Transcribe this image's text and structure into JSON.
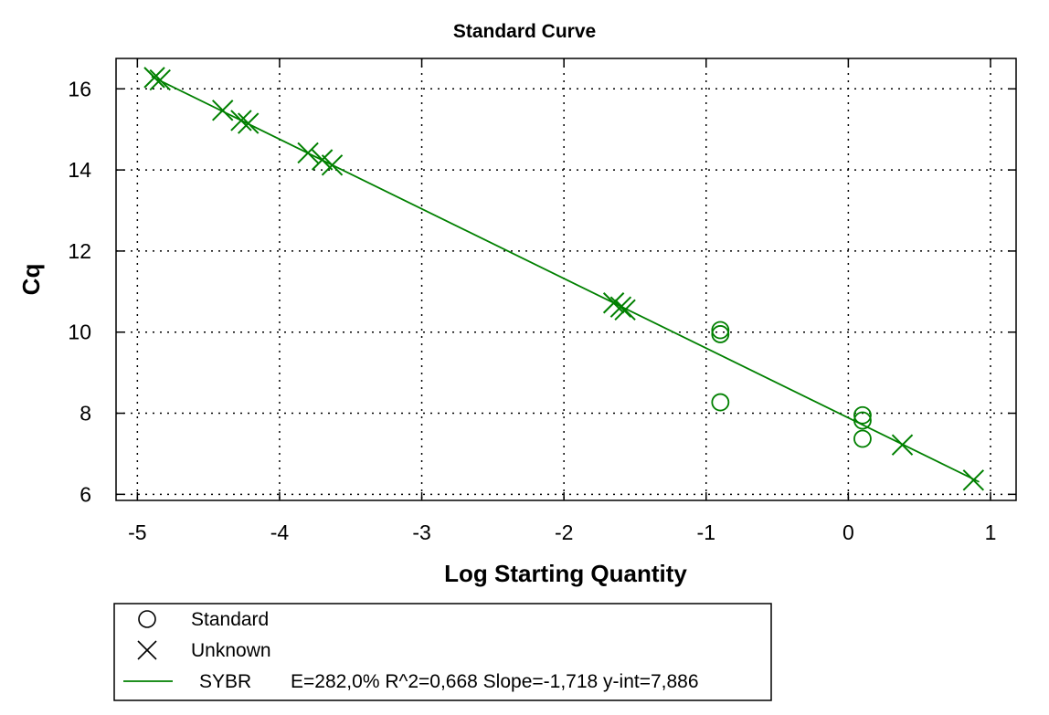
{
  "chart_data": {
    "type": "scatter",
    "title": "Standard Curve",
    "xlabel": "Log Starting Quantity",
    "ylabel": "Cq",
    "xlim": [
      -5.15,
      1.18
    ],
    "ylim": [
      5.85,
      16.75
    ],
    "xticks": [
      -5,
      -4,
      -3,
      -2,
      -1,
      0,
      1
    ],
    "yticks": [
      6,
      8,
      10,
      12,
      14,
      16
    ],
    "grid": true,
    "color": "#008000",
    "series": [
      {
        "name": "Standard",
        "marker": "circle",
        "points": [
          {
            "x": -0.9,
            "y": 10.05
          },
          {
            "x": -0.9,
            "y": 9.95
          },
          {
            "x": -0.9,
            "y": 8.27
          },
          {
            "x": 0.1,
            "y": 7.95
          },
          {
            "x": 0.1,
            "y": 7.82
          },
          {
            "x": 0.1,
            "y": 7.37
          }
        ]
      },
      {
        "name": "Unknown",
        "marker": "x",
        "points": [
          {
            "x": -4.88,
            "y": 16.28
          },
          {
            "x": -4.84,
            "y": 16.22
          },
          {
            "x": -4.4,
            "y": 15.47
          },
          {
            "x": -4.27,
            "y": 15.22
          },
          {
            "x": -4.22,
            "y": 15.15
          },
          {
            "x": -3.8,
            "y": 14.42
          },
          {
            "x": -3.7,
            "y": 14.25
          },
          {
            "x": -3.63,
            "y": 14.12
          },
          {
            "x": -1.65,
            "y": 10.72
          },
          {
            "x": -1.6,
            "y": 10.62
          },
          {
            "x": -1.57,
            "y": 10.55
          },
          {
            "x": 0.38,
            "y": 7.22
          },
          {
            "x": 0.88,
            "y": 6.35
          }
        ]
      },
      {
        "name": "SYBR",
        "type": "line",
        "stats": "E=282,0% R^2=0,668 Slope=-1,718 y-int=7,886",
        "x": [
          -4.9,
          0.92
        ],
        "y": [
          16.305,
          6.306
        ]
      }
    ],
    "legend": {
      "placement": "bottom-left",
      "items": [
        {
          "label": "Standard",
          "marker": "circle"
        },
        {
          "label": "Unknown",
          "marker": "x"
        },
        {
          "label": "SYBR",
          "marker": "line",
          "stats": "E=282,0% R^2=0,668 Slope=-1,718 y-int=7,886"
        }
      ]
    }
  }
}
